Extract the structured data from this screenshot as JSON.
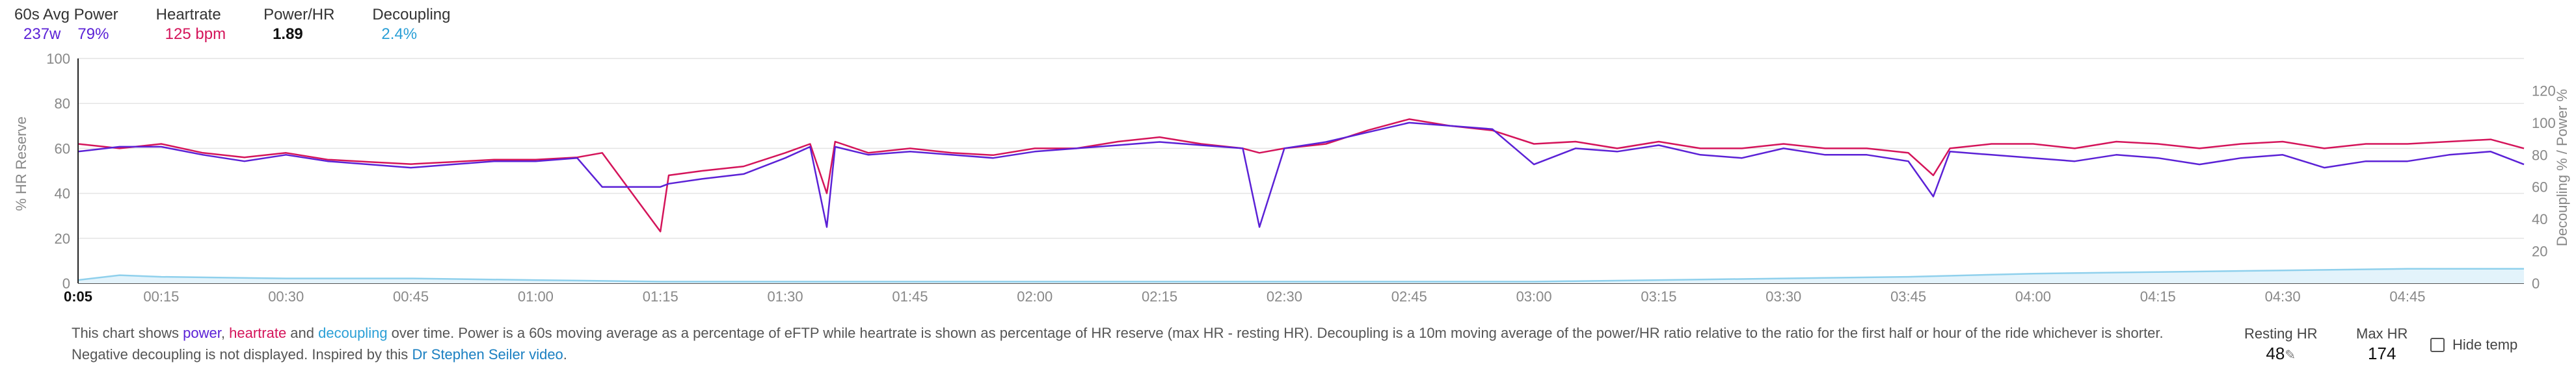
{
  "header": {
    "power": {
      "label": "60s Avg Power",
      "watts": "237w",
      "pct": "79%"
    },
    "heartrate": {
      "label": "Heartrate",
      "value": "125 bpm"
    },
    "ratio": {
      "label": "Power/HR",
      "value": "1.89"
    },
    "decoupling": {
      "label": "Decoupling",
      "value": "2.4%"
    }
  },
  "description": {
    "p1": "This chart shows ",
    "power_word": "power",
    "p2": ", ",
    "hr_word": "heartrate",
    "p3": " and ",
    "dec_word": "decoupling",
    "p4": " over time. Power is a 60s moving average as a percentage of eFTP while heartrate is shown as percentage of HR reserve (max HR - resting HR). Decoupling is a 10m moving average of the power/HR ratio relative to the ratio for the first half or hour of the ride whichever is shorter. Negative decoupling is not displayed. Inspired by this ",
    "link": "Dr Stephen Seiler video",
    "p5": "."
  },
  "resting_hr": {
    "label": "Resting HR",
    "value": "48"
  },
  "max_hr": {
    "label": "Max HR",
    "value": "174"
  },
  "hide_temp": {
    "label": "Hide temp"
  },
  "colors": {
    "power": "#5b21d6",
    "heartrate": "#d4145a",
    "decoupling": "#8fd0ec",
    "grid": "#e4e4e4"
  },
  "chart_data": {
    "type": "line",
    "ylabel": "% HR Reserve",
    "y2label": "Decoupling % / Power %",
    "ylim": [
      0,
      100
    ],
    "y2lim": [
      0,
      140
    ],
    "yticks": [
      0,
      20,
      40,
      60,
      80,
      100
    ],
    "y2ticks": [
      0,
      20,
      40,
      60,
      80,
      100,
      120
    ],
    "xlim": [
      "0:05",
      "4:59"
    ],
    "xticks": [
      "0:05",
      "00:15",
      "00:30",
      "00:45",
      "01:00",
      "01:15",
      "01:30",
      "01:45",
      "02:00",
      "02:15",
      "02:30",
      "02:45",
      "03:00",
      "03:15",
      "03:30",
      "03:45",
      "04:00",
      "04:15",
      "04:30",
      "04:45"
    ],
    "grid": true,
    "series": [
      {
        "name": "heartrate",
        "axis": "left",
        "x": [
          "0:05",
          "0:10",
          "0:15",
          "0:20",
          "0:25",
          "0:30",
          "0:35",
          "0:40",
          "0:45",
          "0:50",
          "0:55",
          "1:00",
          "1:05",
          "1:08",
          "1:15",
          "1:16",
          "1:20",
          "1:25",
          "1:30",
          "1:33",
          "1:35",
          "1:36",
          "1:40",
          "1:45",
          "1:50",
          "1:55",
          "2:00",
          "2:05",
          "2:10",
          "2:15",
          "2:20",
          "2:25",
          "2:27",
          "2:30",
          "2:35",
          "2:40",
          "2:45",
          "2:50",
          "2:55",
          "3:00",
          "3:05",
          "3:10",
          "3:15",
          "3:20",
          "3:25",
          "3:30",
          "3:35",
          "3:40",
          "3:45",
          "3:48",
          "3:50",
          "3:55",
          "4:00",
          "4:05",
          "4:10",
          "4:15",
          "4:20",
          "4:25",
          "4:30",
          "4:35",
          "4:40",
          "4:45",
          "4:50",
          "4:55",
          "4:59"
        ],
        "values": [
          62,
          60,
          62,
          58,
          56,
          58,
          55,
          54,
          53,
          54,
          55,
          55,
          56,
          58,
          23,
          48,
          50,
          52,
          58,
          62,
          40,
          63,
          58,
          60,
          58,
          57,
          60,
          60,
          63,
          65,
          62,
          60,
          58,
          60,
          62,
          68,
          73,
          70,
          68,
          62,
          63,
          60,
          63,
          60,
          60,
          62,
          60,
          60,
          58,
          48,
          60,
          62,
          62,
          60,
          63,
          62,
          60,
          62,
          63,
          60,
          62,
          62,
          63,
          64,
          60
        ]
      },
      {
        "name": "power",
        "axis": "right",
        "x": [
          "0:05",
          "0:10",
          "0:15",
          "0:20",
          "0:25",
          "0:30",
          "0:35",
          "0:40",
          "0:45",
          "0:50",
          "0:55",
          "1:00",
          "1:05",
          "1:08",
          "1:15",
          "1:16",
          "1:20",
          "1:25",
          "1:30",
          "1:33",
          "1:35",
          "1:36",
          "1:40",
          "1:45",
          "1:50",
          "1:55",
          "2:00",
          "2:05",
          "2:10",
          "2:15",
          "2:20",
          "2:25",
          "2:27",
          "2:30",
          "2:35",
          "2:40",
          "2:45",
          "2:50",
          "2:55",
          "3:00",
          "3:05",
          "3:10",
          "3:15",
          "3:20",
          "3:25",
          "3:30",
          "3:35",
          "3:40",
          "3:45",
          "3:48",
          "3:50",
          "3:55",
          "4:00",
          "4:05",
          "4:10",
          "4:15",
          "4:20",
          "4:25",
          "4:30",
          "4:35",
          "4:40",
          "4:45",
          "4:50",
          "4:55",
          "4:59"
        ],
        "values": [
          82,
          85,
          85,
          80,
          76,
          80,
          76,
          74,
          72,
          74,
          76,
          76,
          78,
          60,
          60,
          62,
          65,
          68,
          78,
          85,
          35,
          85,
          80,
          82,
          80,
          78,
          82,
          84,
          86,
          88,
          86,
          84,
          35,
          84,
          88,
          94,
          100,
          98,
          96,
          74,
          84,
          82,
          86,
          80,
          78,
          84,
          80,
          80,
          76,
          54,
          82,
          80,
          78,
          76,
          80,
          78,
          74,
          78,
          80,
          72,
          76,
          76,
          80,
          82,
          74
        ]
      },
      {
        "name": "decoupling",
        "axis": "right",
        "x": [
          "0:05",
          "0:10",
          "0:15",
          "0:30",
          "0:45",
          "1:00",
          "1:15",
          "1:30",
          "1:45",
          "2:00",
          "2:15",
          "2:30",
          "2:45",
          "3:00",
          "3:15",
          "3:30",
          "3:45",
          "4:00",
          "4:15",
          "4:30",
          "4:45",
          "4:59"
        ],
        "values": [
          2,
          5,
          4,
          3,
          3,
          2,
          1,
          1,
          1,
          1,
          1,
          1,
          1,
          1,
          2,
          3,
          4,
          6,
          7,
          8,
          9,
          9
        ]
      }
    ]
  }
}
